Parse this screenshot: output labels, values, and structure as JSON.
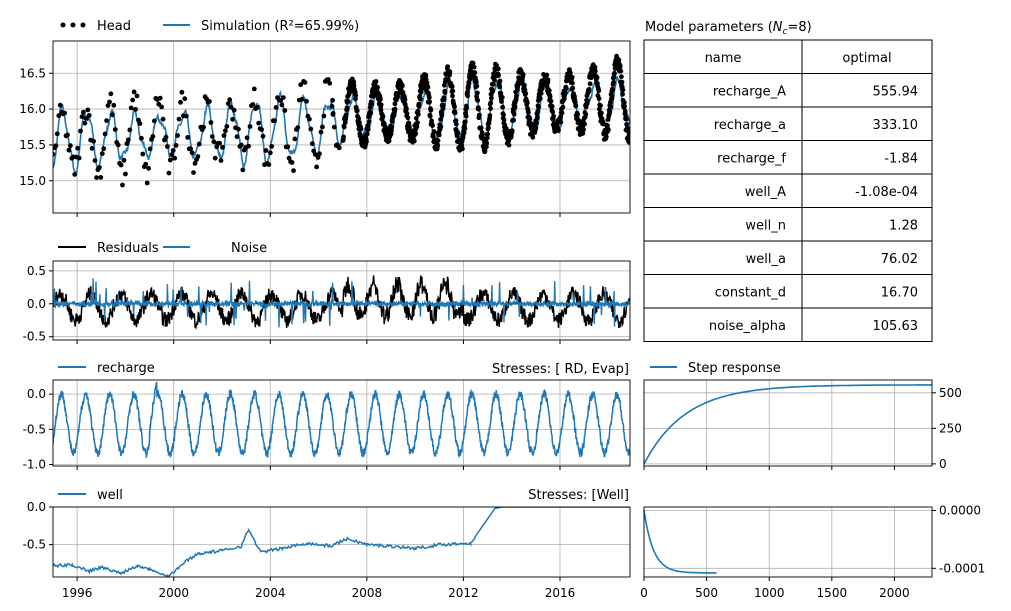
{
  "colors": {
    "head": "#000000",
    "sim": "#1f77b4",
    "residuals": "#000000",
    "noise": "#1f77b4",
    "grid": "#b0b0b0"
  },
  "legend": {
    "head": "Head",
    "simulation": "Simulation (R²=65.99%)",
    "residuals": "Residuals",
    "noise": "Noise",
    "recharge": "recharge",
    "recharge_stresses": "Stresses: [   RD, Evap]",
    "step_response": "Step response",
    "well": "well",
    "well_stresses": "Stresses: [Well]"
  },
  "params_table": {
    "title": "Model parameters (Nc=8)",
    "header": [
      "name",
      "optimal"
    ],
    "rows": [
      [
        "recharge_A",
        "555.94"
      ],
      [
        "recharge_a",
        "333.10"
      ],
      [
        "recharge_f",
        "-1.84"
      ],
      [
        "well_A",
        "-1.08e-04"
      ],
      [
        "well_n",
        "1.28"
      ],
      [
        "well_a",
        "76.02"
      ],
      [
        "constant_d",
        "16.70"
      ],
      [
        "noise_alpha",
        "105.63"
      ]
    ]
  },
  "chart_data": [
    {
      "id": "head",
      "type": "line",
      "series": [
        {
          "name": "Head"
        },
        {
          "name": "Simulation"
        }
      ],
      "x_range": [
        1995.0,
        2018.9
      ],
      "ylim": [
        14.55,
        16.95
      ],
      "y_ticks": [
        "15.0",
        "15.5",
        "16.0",
        "16.5"
      ],
      "grid": true,
      "legend_position": "above"
    },
    {
      "id": "residuals",
      "type": "line",
      "series": [
        {
          "name": "Residuals"
        },
        {
          "name": "Noise"
        }
      ],
      "x_range": [
        1995.0,
        2018.9
      ],
      "ylim": [
        -0.55,
        0.65
      ],
      "y_ticks": [
        "0.5",
        "0.0",
        "-0.5"
      ],
      "grid": true,
      "legend_position": "above"
    },
    {
      "id": "recharge",
      "type": "line",
      "series": [
        {
          "name": "recharge"
        }
      ],
      "x_range": [
        1995.0,
        2018.9
      ],
      "ylim": [
        -1.02,
        0.2
      ],
      "y_ticks": [
        "0.0",
        "-0.5",
        "-1.0"
      ],
      "grid": true
    },
    {
      "id": "well",
      "type": "line",
      "series": [
        {
          "name": "well"
        }
      ],
      "x_range": [
        1995.0,
        2018.9
      ],
      "ylim": [
        -0.93,
        0.0
      ],
      "y_ticks": [
        "0.0",
        "-0.5"
      ],
      "x_ticks": [
        "1996",
        "2000",
        "2004",
        "2008",
        "2012",
        "2016"
      ],
      "grid": true
    },
    {
      "id": "step_response_recharge",
      "type": "line",
      "series": [
        {
          "name": "Step response"
        }
      ],
      "x_range": [
        0,
        2300
      ],
      "ylim": [
        -15,
        590
      ],
      "y_ticks": [
        "500",
        "250",
        "0"
      ],
      "points": [
        [
          0,
          0
        ],
        [
          50,
          80
        ],
        [
          100,
          149
        ],
        [
          200,
          255
        ],
        [
          300,
          330
        ],
        [
          400,
          407
        ],
        [
          500,
          440
        ],
        [
          700,
          485
        ],
        [
          900,
          515
        ],
        [
          1200,
          537
        ],
        [
          1500,
          549
        ],
        [
          2000,
          555
        ],
        [
          2300,
          556
        ]
      ]
    },
    {
      "id": "step_response_well",
      "type": "line",
      "x_range": [
        0,
        2300
      ],
      "ylim": [
        -0.000115,
        6e-06
      ],
      "y_ticks": [
        "0.0000",
        "-0.0001"
      ],
      "x_ticks": [
        "0",
        "500",
        "1000",
        "1500",
        "2000"
      ],
      "points": [
        [
          0,
          0
        ],
        [
          25,
          -2.5e-05
        ],
        [
          50,
          -4.5e-05
        ],
        [
          100,
          -6.9e-05
        ],
        [
          150,
          -8.2e-05
        ],
        [
          200,
          -9.2e-05
        ],
        [
          300,
          -0.000101
        ],
        [
          400,
          -0.000106
        ],
        [
          580,
          -0.000108
        ]
      ]
    }
  ]
}
